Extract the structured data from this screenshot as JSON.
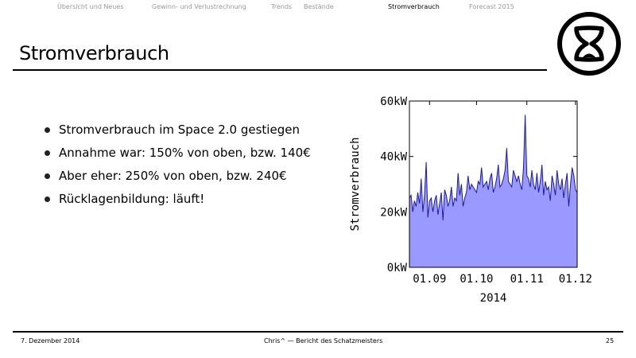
{
  "nav": {
    "items": [
      {
        "label": "Übersicht und Neues"
      },
      {
        "label": "Gewinn- und Verlustrechnung"
      },
      {
        "label": "Trends"
      },
      {
        "label": "Bestände"
      },
      {
        "label": "Stromverbrauch"
      },
      {
        "label": "Forecast 2015"
      }
    ],
    "active_index": 4
  },
  "slide": {
    "title": "Stromverbrauch",
    "bullets": [
      "Stromverbrauch im Space 2.0 gestiegen",
      "Annahme war: 150% von oben, bzw. 140€",
      "Aber eher: 250% von oben, bzw. 240€",
      "Rücklagenbildung: läuft!"
    ]
  },
  "chart_data": {
    "type": "area",
    "ylabel": "Stromverbrauch",
    "xlabel": "2014",
    "ylim": [
      0,
      60
    ],
    "xlim": [
      0,
      100
    ],
    "y_ticks": [
      "0kW",
      "20kW",
      "40kW",
      "60kW"
    ],
    "x_tick_labels": [
      "01.09",
      "01.10",
      "01.11",
      "01.12"
    ],
    "x_tick_positions": [
      12,
      40,
      70,
      99
    ],
    "fill_color": "#9999ff",
    "line_color": "#1a1aa6",
    "x": [
      0,
      1,
      2,
      3,
      4,
      5,
      6,
      7,
      8,
      9,
      10,
      11,
      12,
      13,
      14,
      15,
      16,
      17,
      18,
      19,
      20,
      21,
      22,
      23,
      24,
      25,
      26,
      27,
      28,
      29,
      30,
      31,
      32,
      33,
      34,
      35,
      36,
      37,
      38,
      39,
      40,
      41,
      42,
      43,
      44,
      45,
      46,
      47,
      48,
      49,
      50,
      51,
      52,
      53,
      54,
      55,
      56,
      57,
      58,
      59,
      60,
      61,
      62,
      63,
      64,
      65,
      66,
      67,
      68,
      69,
      70,
      71,
      72,
      73,
      74,
      75,
      76,
      77,
      78,
      79,
      80,
      81,
      82,
      83,
      84,
      85,
      86,
      87,
      88,
      89,
      90,
      91,
      92,
      93,
      94,
      95,
      96,
      97,
      98,
      99,
      100
    ],
    "y": [
      25,
      26,
      20,
      24,
      22,
      27,
      23,
      32,
      20,
      26,
      38,
      18,
      24,
      25,
      20,
      24,
      26,
      19,
      23,
      27,
      17,
      28,
      26,
      22,
      24,
      29,
      22,
      25,
      24,
      34,
      26,
      30,
      22,
      25,
      27,
      33,
      28,
      30,
      29,
      28,
      27,
      31,
      30,
      36,
      29,
      30,
      31,
      28,
      32,
      34,
      27,
      29,
      32,
      37,
      29,
      30,
      32,
      35,
      43,
      31,
      30,
      29,
      35,
      33,
      31,
      33,
      30,
      28,
      36,
      55,
      33,
      32,
      29,
      35,
      30,
      28,
      34,
      27,
      31,
      37,
      26,
      31,
      28,
      29,
      24,
      33,
      30,
      26,
      35,
      30,
      28,
      32,
      25,
      30,
      34,
      22,
      30,
      36,
      33,
      28,
      27
    ]
  },
  "footer": {
    "date": "7. Dezember 2014",
    "center": "Chris^ — Bericht des Schatzmeisters",
    "page": "25"
  }
}
